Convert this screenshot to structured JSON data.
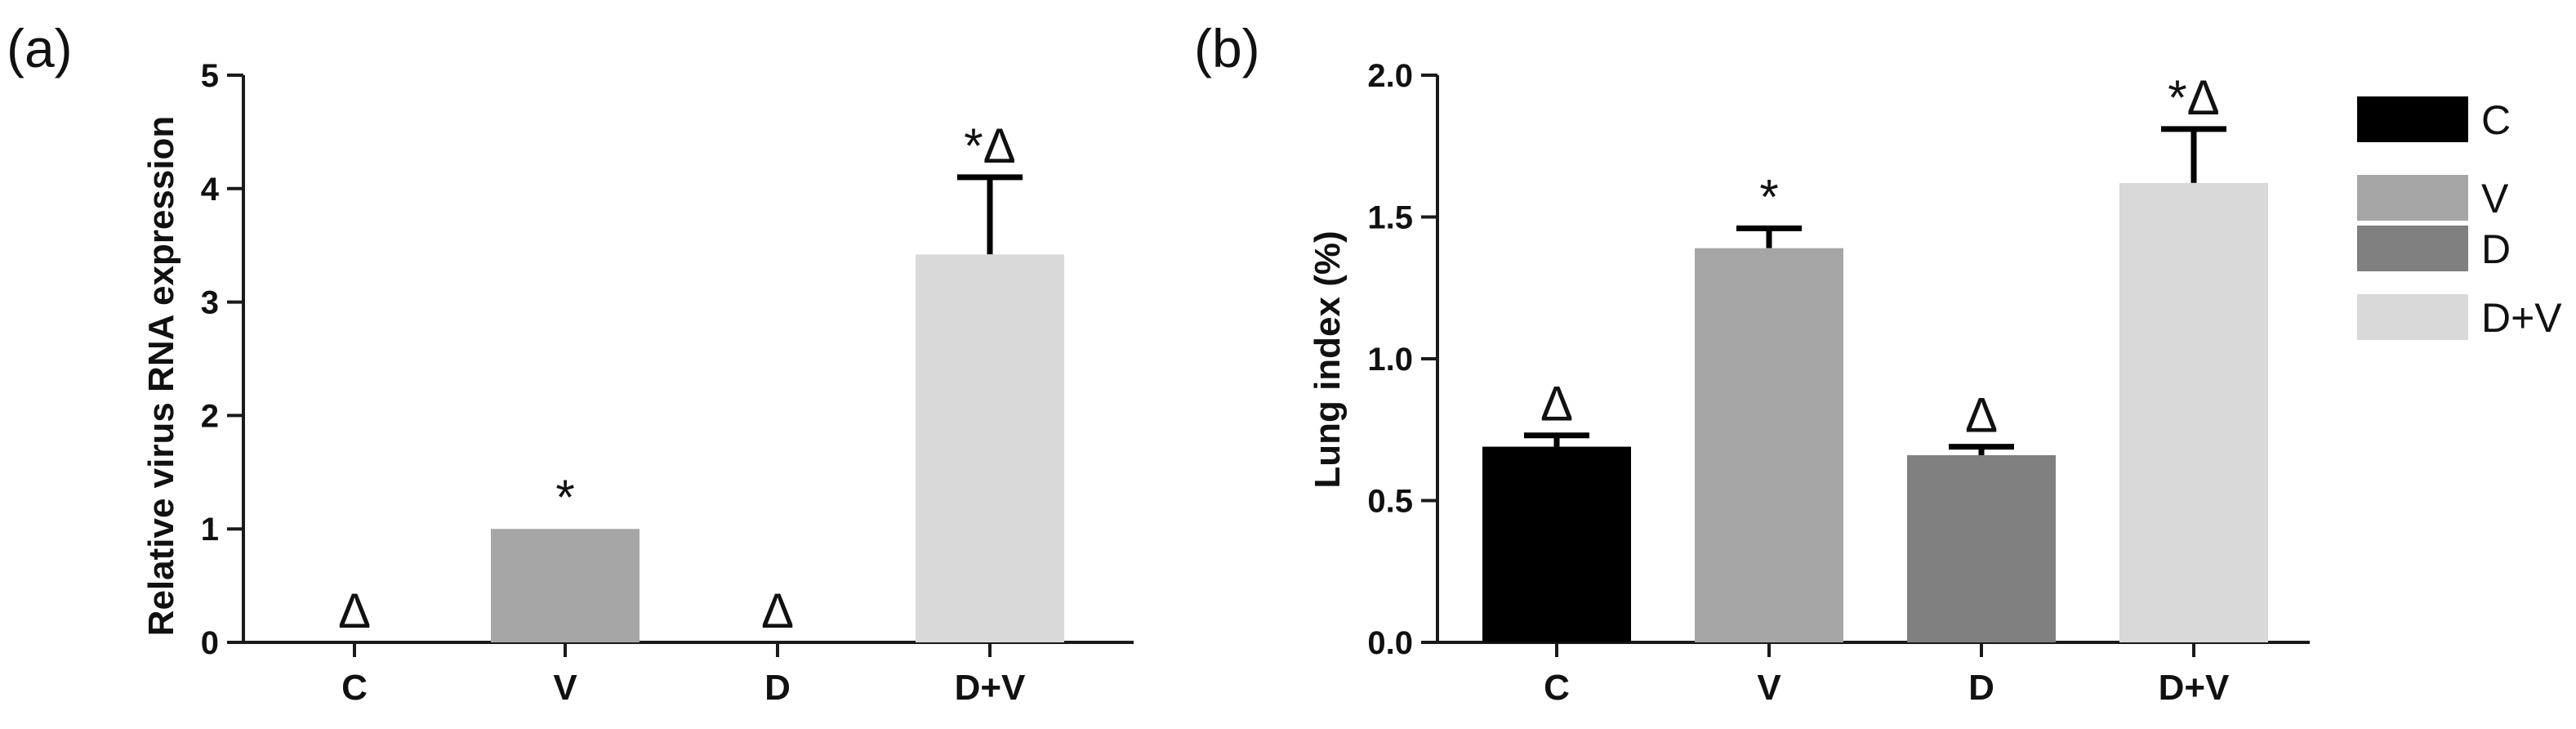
{
  "chart_data": [
    {
      "type": "bar",
      "panel_label": "(a)",
      "ylabel": "Relative virus RNA expression",
      "xlabel": "",
      "categories": [
        "C",
        "V",
        "D",
        "D+V"
      ],
      "values": [
        0,
        1.0,
        0,
        3.42
      ],
      "errors": [
        0,
        0,
        0,
        0.68
      ],
      "annotations": [
        "Δ",
        "*",
        "Δ",
        "*Δ"
      ],
      "ylim": [
        0,
        5
      ],
      "yticks": [
        "0",
        "1",
        "2",
        "3",
        "4",
        "5"
      ],
      "colors": [
        "#000000",
        "#a6a6a6",
        "#808080",
        "#d9d9d9"
      ]
    },
    {
      "type": "bar",
      "panel_label": "(b)",
      "ylabel": "Lung index (%)",
      "xlabel": "",
      "categories": [
        "C",
        "V",
        "D",
        "D+V"
      ],
      "values": [
        0.69,
        1.39,
        0.66,
        1.62
      ],
      "errors": [
        0.04,
        0.07,
        0.03,
        0.19
      ],
      "annotations": [
        "Δ",
        "*",
        "Δ",
        "*Δ"
      ],
      "ylim": [
        0,
        2
      ],
      "yticks": [
        "0.0",
        "0.5",
        "1.0",
        "1.5",
        "2.0"
      ],
      "colors": [
        "#000000",
        "#a6a6a6",
        "#808080",
        "#d9d9d9"
      ],
      "legend": {
        "position": "right",
        "entries": [
          {
            "label": "C",
            "color": "#000000"
          },
          {
            "label": "V",
            "color": "#a6a6a6"
          },
          {
            "label": "D",
            "color": "#808080"
          },
          {
            "label": "D+V",
            "color": "#d9d9d9"
          }
        ]
      }
    }
  ]
}
